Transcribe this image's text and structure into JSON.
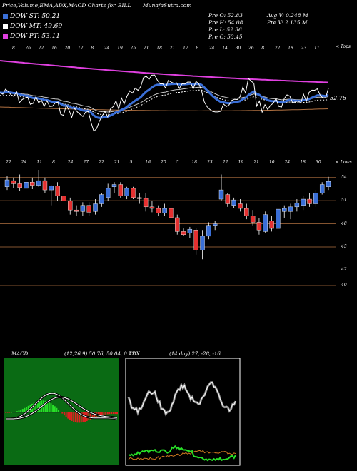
{
  "header": {
    "title": "Price,Volume,EMA,ADX,MACD Charts for",
    "symbol": "BILL",
    "site": "MunafaSutra.com"
  },
  "legend": [
    {
      "label": "DOW ST: 50.21",
      "color": "#3a6fd8"
    },
    {
      "label": "DOW MT: 49.69",
      "color": "#ffffff"
    },
    {
      "label": "DOW PT: 53.11",
      "color": "#e040e0"
    }
  ],
  "stats": {
    "prev_open": "Pre  O: 52.83",
    "prev_high": "Pre  H: 54.08",
    "prev_low": "Pre  L: 52.36",
    "prev_close": "Pre  C: 53.45",
    "avg_vol": "Avg V: 0.248  M",
    "prev_vol": "Pre  V: 2.135 M"
  },
  "ema_panel": {
    "top_label": "< Tops",
    "price_label": "52.76",
    "dates": [
      "8",
      "26",
      "22",
      "16",
      "20",
      "12",
      "8",
      "24",
      "19",
      "25",
      "21",
      "18",
      "21",
      "17",
      "8",
      "24",
      "14",
      "30",
      "26",
      "8",
      "22",
      "18",
      "23",
      "11"
    ],
    "colors": {
      "price": "#ffffff",
      "st": "#3a6fd8",
      "mt": "#ffffff",
      "pt": "#e040e0",
      "long": "#b07040"
    }
  },
  "candle_panel": {
    "bottom_label": "< Lows",
    "dates": [
      "22",
      "24",
      "11",
      "8",
      "24",
      "27",
      "22",
      "21",
      "5",
      "16",
      "20",
      "5",
      "18",
      "23",
      "22",
      "19",
      "21",
      "10",
      "24",
      "18",
      "30"
    ],
    "yticks": [
      "54",
      "51",
      "48",
      "45",
      "42",
      "40"
    ],
    "colors": {
      "up": "#3a6fd8",
      "down": "#e53030",
      "gridline": "#b07040"
    }
  },
  "macd": {
    "label": "MACD",
    "params": "(12,26,9) 50.76, 50.04, 0.72",
    "colors": {
      "bg": "#0a6b14",
      "line": "#ffffff",
      "hist_pos": "#28e028",
      "hist_neg": "#e02020"
    }
  },
  "adx": {
    "label": "ADX",
    "params": "(14 day) 27, -28, -16",
    "colors": {
      "bg": "#000000",
      "adx": "#ffffff",
      "plus": "#28e028",
      "minus": "#d07820"
    }
  },
  "chart_data": [
    {
      "type": "line",
      "title": "Price,Volume,EMA,ADX,MACD Charts for BILL",
      "series": [
        {
          "name": "DOW ST",
          "values": [
            50.21
          ]
        },
        {
          "name": "DOW MT",
          "values": [
            49.69
          ]
        },
        {
          "name": "DOW PT",
          "values": [
            53.11
          ]
        }
      ],
      "last_price": 52.76
    },
    {
      "type": "bar",
      "title": "",
      "ylim": [
        40,
        55
      ],
      "yticks": [
        54,
        51,
        48,
        45,
        42,
        40
      ],
      "candles": [
        {
          "o": 52.8,
          "h": 54.2,
          "l": 52.4,
          "c": 53.7
        },
        {
          "o": 53.6,
          "h": 54.0,
          "l": 52.6,
          "c": 53.2
        },
        {
          "o": 53.2,
          "h": 54.4,
          "l": 52.3,
          "c": 52.7
        },
        {
          "o": 52.6,
          "h": 54.3,
          "l": 52.2,
          "c": 53.4
        },
        {
          "o": 53.4,
          "h": 54.0,
          "l": 52.5,
          "c": 53.0
        },
        {
          "o": 53.0,
          "h": 55.0,
          "l": 52.8,
          "c": 53.6
        },
        {
          "o": 53.6,
          "h": 54.0,
          "l": 52.0,
          "c": 52.4
        },
        {
          "o": 52.4,
          "h": 53.0,
          "l": 50.4,
          "c": 52.9
        },
        {
          "o": 52.9,
          "h": 53.4,
          "l": 51.0,
          "c": 51.6
        },
        {
          "o": 51.6,
          "h": 52.8,
          "l": 50.0,
          "c": 51.0
        },
        {
          "o": 51.0,
          "h": 51.4,
          "l": 49.2,
          "c": 49.8
        },
        {
          "o": 49.8,
          "h": 50.4,
          "l": 49.0,
          "c": 49.6
        },
        {
          "o": 49.6,
          "h": 50.8,
          "l": 49.0,
          "c": 50.4
        },
        {
          "o": 50.4,
          "h": 50.8,
          "l": 49.0,
          "c": 49.5
        },
        {
          "o": 49.6,
          "h": 51.2,
          "l": 49.2,
          "c": 50.6
        },
        {
          "o": 50.6,
          "h": 52.0,
          "l": 50.2,
          "c": 51.8
        },
        {
          "o": 51.4,
          "h": 53.2,
          "l": 51.0,
          "c": 52.6
        },
        {
          "o": 52.8,
          "h": 53.4,
          "l": 52.0,
          "c": 53.1
        },
        {
          "o": 53.1,
          "h": 53.4,
          "l": 51.4,
          "c": 51.6
        },
        {
          "o": 51.6,
          "h": 52.8,
          "l": 51.2,
          "c": 52.6
        },
        {
          "o": 52.6,
          "h": 52.8,
          "l": 51.2,
          "c": 51.4
        },
        {
          "o": 51.4,
          "h": 52.0,
          "l": 50.6,
          "c": 51.3
        },
        {
          "o": 51.3,
          "h": 52.0,
          "l": 49.6,
          "c": 50.2
        },
        {
          "o": 50.2,
          "h": 51.0,
          "l": 49.5,
          "c": 50.0
        },
        {
          "o": 50.0,
          "h": 50.4,
          "l": 49.0,
          "c": 49.4
        },
        {
          "o": 49.4,
          "h": 50.6,
          "l": 49.0,
          "c": 50.0
        },
        {
          "o": 50.0,
          "h": 50.4,
          "l": 48.4,
          "c": 48.8
        },
        {
          "o": 48.8,
          "h": 49.2,
          "l": 46.6,
          "c": 47.0
        },
        {
          "o": 47.0,
          "h": 47.4,
          "l": 46.4,
          "c": 46.6
        },
        {
          "o": 46.8,
          "h": 47.6,
          "l": 46.2,
          "c": 47.3
        },
        {
          "o": 47.2,
          "h": 47.4,
          "l": 44.0,
          "c": 44.6
        },
        {
          "o": 44.6,
          "h": 47.2,
          "l": 43.4,
          "c": 46.4
        },
        {
          "o": 46.4,
          "h": 48.2,
          "l": 46.0,
          "c": 47.8
        },
        {
          "o": 47.8,
          "h": 48.4,
          "l": 47.2,
          "c": 48.0
        },
        {
          "o": 51.2,
          "h": 54.4,
          "l": 51.0,
          "c": 52.4
        },
        {
          "o": 51.8,
          "h": 52.0,
          "l": 50.2,
          "c": 50.6
        },
        {
          "o": 50.4,
          "h": 51.4,
          "l": 50.0,
          "c": 51.1
        },
        {
          "o": 50.6,
          "h": 51.2,
          "l": 49.6,
          "c": 50.0
        },
        {
          "o": 50.0,
          "h": 50.6,
          "l": 48.6,
          "c": 49.0
        },
        {
          "o": 49.0,
          "h": 49.8,
          "l": 47.8,
          "c": 48.2
        },
        {
          "o": 48.2,
          "h": 48.8,
          "l": 46.6,
          "c": 47.2
        },
        {
          "o": 47.0,
          "h": 49.6,
          "l": 46.8,
          "c": 49.2
        },
        {
          "o": 48.4,
          "h": 49.0,
          "l": 47.0,
          "c": 47.4
        },
        {
          "o": 47.4,
          "h": 50.2,
          "l": 47.2,
          "c": 49.9
        },
        {
          "o": 49.6,
          "h": 50.4,
          "l": 48.8,
          "c": 50.0
        },
        {
          "o": 49.6,
          "h": 50.6,
          "l": 48.6,
          "c": 50.2
        },
        {
          "o": 50.2,
          "h": 51.2,
          "l": 49.6,
          "c": 50.7
        },
        {
          "o": 50.4,
          "h": 51.6,
          "l": 49.8,
          "c": 51.2
        },
        {
          "o": 51.2,
          "h": 52.0,
          "l": 50.2,
          "c": 50.6
        },
        {
          "o": 50.6,
          "h": 52.4,
          "l": 50.2,
          "c": 52.0
        },
        {
          "o": 52.0,
          "h": 53.4,
          "l": 51.8,
          "c": 53.1
        },
        {
          "o": 52.8,
          "h": 54.1,
          "l": 52.4,
          "c": 53.5
        }
      ]
    }
  ]
}
